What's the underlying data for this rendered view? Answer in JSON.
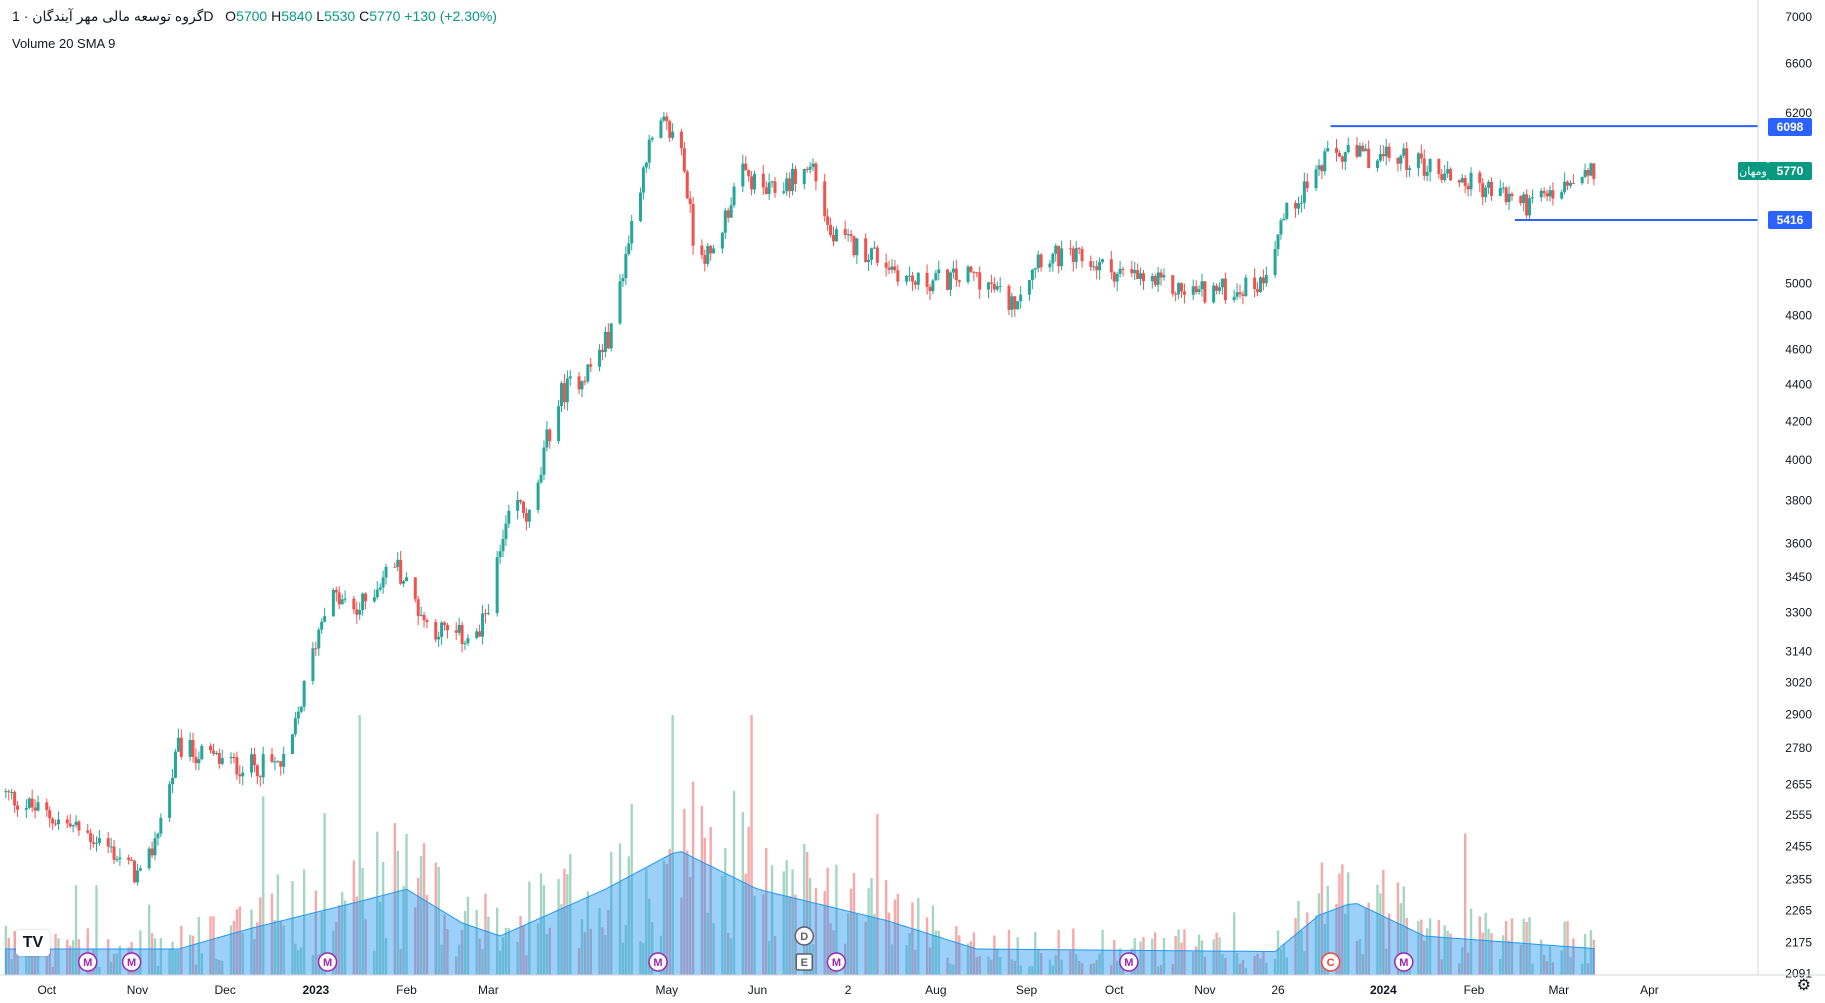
{
  "header": {
    "symbol": "گروه توسعه مالی مهر آیندگان",
    "separator": "·",
    "interval": "1D",
    "open_label": "O",
    "open": "5700",
    "high_label": "H",
    "high": "5840",
    "low_label": "L",
    "low": "5530",
    "close_label": "C",
    "close": "5770",
    "change": "+130",
    "change_pct": "(+2.30%)"
  },
  "indicator": {
    "label": "Volume 20 SMA 9"
  },
  "price_badges": {
    "resistance": "6098",
    "current_name": "ومهان",
    "current": "5770",
    "support": "5416"
  },
  "colors": {
    "up": "#26a69a",
    "down": "#ef5350",
    "up_volume": "#a5d6c4",
    "down_volume": "#f5a9a9",
    "volume_sma": "#2196f3",
    "horizontal_line": "#2962ff",
    "current_badge": "#089981",
    "event_m": "#9c27b0",
    "event_c": "#f44336",
    "event_d_e": "#5d606b"
  },
  "events": [
    {
      "type": "M",
      "date": "2022-10-15"
    },
    {
      "type": "M",
      "date": "2022-10-30"
    },
    {
      "type": "M",
      "date": "2023-01-05"
    },
    {
      "type": "M",
      "date": "2023-04-28"
    },
    {
      "type": "D",
      "date": "2023-06-17"
    },
    {
      "type": "E",
      "date": "2023-06-17"
    },
    {
      "type": "M",
      "date": "2023-06-28"
    },
    {
      "type": "M",
      "date": "2023-10-06"
    },
    {
      "type": "C",
      "date": "2023-12-14"
    },
    {
      "type": "M",
      "date": "2024-01-08"
    }
  ],
  "chart_data": {
    "type": "candlestick",
    "x_labels": [
      "Oct",
      "Nov",
      "Dec",
      "2023",
      "Feb",
      "Mar",
      "May",
      "Jun",
      "2",
      "Aug",
      "Sep",
      "Oct",
      "Nov",
      "26",
      "2024",
      "Feb",
      "Mar",
      "Apr"
    ],
    "y_ticks": [
      2091,
      2175,
      2265,
      2355,
      2455,
      2555,
      2655,
      2780,
      2900,
      3020,
      3140,
      3300,
      3450,
      3600,
      3800,
      4000,
      4200,
      4400,
      4600,
      4800,
      5000,
      6200,
      6600,
      7000
    ],
    "y_scale": "log",
    "horizontal_lines": [
      {
        "value": 6098,
        "from": "2023-12-14",
        "to": "end"
      },
      {
        "value": 5416,
        "from": "2024-02-15",
        "to": "end"
      }
    ],
    "anchors": [
      {
        "date": "2022-09-15",
        "price": 2630
      },
      {
        "date": "2022-10-20",
        "price": 2470
      },
      {
        "date": "2022-11-03",
        "price": 2350
      },
      {
        "date": "2022-11-12",
        "price": 2650
      },
      {
        "date": "2022-11-15",
        "price": 2780
      },
      {
        "date": "2022-12-05",
        "price": 2720
      },
      {
        "date": "2022-12-22",
        "price": 2720
      },
      {
        "date": "2022-12-27",
        "price": 2950
      },
      {
        "date": "2023-01-05",
        "price": 3380
      },
      {
        "date": "2023-01-15",
        "price": 3300
      },
      {
        "date": "2023-01-28",
        "price": 3520
      },
      {
        "date": "2023-02-08",
        "price": 3250
      },
      {
        "date": "2023-02-18",
        "price": 3200
      },
      {
        "date": "2023-02-26",
        "price": 3200
      },
      {
        "date": "2023-03-05",
        "price": 3550
      },
      {
        "date": "2023-03-10",
        "price": 3800
      },
      {
        "date": "2023-03-16",
        "price": 3700
      },
      {
        "date": "2023-03-21",
        "price": 4100
      },
      {
        "date": "2023-03-26",
        "price": 4350
      },
      {
        "date": "2023-04-05",
        "price": 4500
      },
      {
        "date": "2023-04-12",
        "price": 4700
      },
      {
        "date": "2023-04-15",
        "price": 5000
      },
      {
        "date": "2023-04-24",
        "price": 5900
      },
      {
        "date": "2023-04-30",
        "price": 6100
      },
      {
        "date": "2023-05-06",
        "price": 5950
      },
      {
        "date": "2023-05-10",
        "price": 5300
      },
      {
        "date": "2023-05-16",
        "price": 5150
      },
      {
        "date": "2023-05-26",
        "price": 5750
      },
      {
        "date": "2023-06-05",
        "price": 5600
      },
      {
        "date": "2023-06-20",
        "price": 5800
      },
      {
        "date": "2023-06-26",
        "price": 5300
      },
      {
        "date": "2023-07-10",
        "price": 5200
      },
      {
        "date": "2023-07-25",
        "price": 5000
      },
      {
        "date": "2023-08-15",
        "price": 5050
      },
      {
        "date": "2023-08-27",
        "price": 4870
      },
      {
        "date": "2023-09-05",
        "price": 5180
      },
      {
        "date": "2023-09-20",
        "price": 5150
      },
      {
        "date": "2023-10-05",
        "price": 5050
      },
      {
        "date": "2023-10-25",
        "price": 4950
      },
      {
        "date": "2023-11-10",
        "price": 4960
      },
      {
        "date": "2023-11-20",
        "price": 5000
      },
      {
        "date": "2023-11-27",
        "price": 5400
      },
      {
        "date": "2023-12-05",
        "price": 5650
      },
      {
        "date": "2023-12-14",
        "price": 5880
      },
      {
        "date": "2024-01-10",
        "price": 5850
      },
      {
        "date": "2024-01-25",
        "price": 5720
      },
      {
        "date": "2024-02-10",
        "price": 5600
      },
      {
        "date": "2024-02-20",
        "price": 5520
      },
      {
        "date": "2024-03-05",
        "price": 5650
      },
      {
        "date": "2024-03-15",
        "price": 5770
      }
    ],
    "volume_sma_anchors": [
      {
        "date": "2022-09-15",
        "value": 0.1
      },
      {
        "date": "2022-11-15",
        "value": 0.1
      },
      {
        "date": "2022-12-10",
        "value": 0.18
      },
      {
        "date": "2023-01-15",
        "value": 0.28
      },
      {
        "date": "2023-02-01",
        "value": 0.33
      },
      {
        "date": "2023-02-20",
        "value": 0.2
      },
      {
        "date": "2023-03-05",
        "value": 0.15
      },
      {
        "date": "2023-04-10",
        "value": 0.33
      },
      {
        "date": "2023-05-05",
        "value": 0.48
      },
      {
        "date": "2023-06-01",
        "value": 0.33
      },
      {
        "date": "2023-07-15",
        "value": 0.21
      },
      {
        "date": "2023-08-15",
        "value": 0.1
      },
      {
        "date": "2023-11-25",
        "value": 0.09
      },
      {
        "date": "2023-12-10",
        "value": 0.23
      },
      {
        "date": "2023-12-22",
        "value": 0.28
      },
      {
        "date": "2024-01-15",
        "value": 0.15
      },
      {
        "date": "2024-03-15",
        "value": 0.1
      }
    ]
  }
}
